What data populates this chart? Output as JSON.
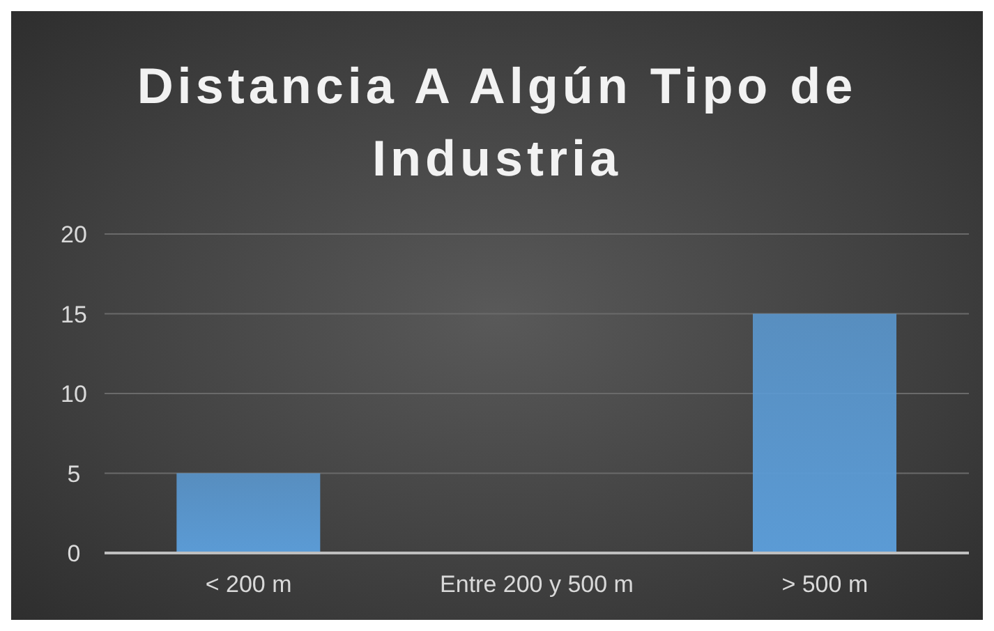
{
  "chart_data": {
    "type": "bar",
    "title": "Distancia A Algún Tipo de Industria",
    "categories": [
      "< 200 m",
      "Entre 200 y 500 m",
      "> 500 m"
    ],
    "values": [
      5,
      0,
      15
    ],
    "color": "#5b9bd5",
    "ylim": [
      0,
      20
    ],
    "yticks": [
      0,
      5,
      10,
      15,
      20
    ],
    "grid": "y",
    "legend": false
  }
}
